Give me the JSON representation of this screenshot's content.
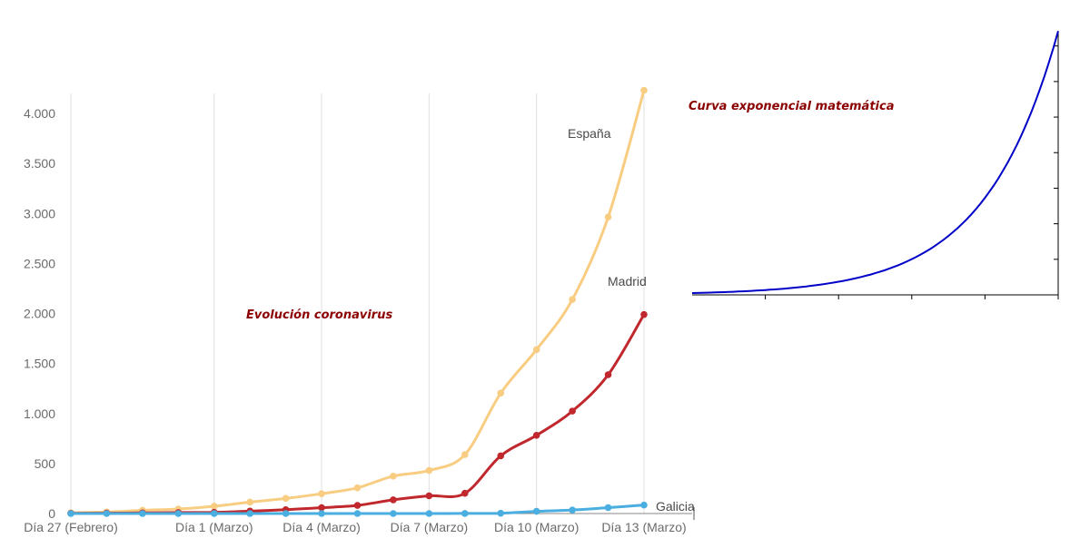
{
  "chart_data": [
    {
      "type": "line",
      "title": "Evolución coronavirus",
      "xlabel": "",
      "ylabel": "",
      "ylim": [
        0,
        4200
      ],
      "grid": "vertical",
      "categories": [
        "Día 27 (Febrero)",
        "",
        "",
        "",
        "Día 1 (Marzo)",
        "",
        "",
        "Día 4 (Marzo)",
        "",
        "",
        "Día 7 (Marzo)",
        "",
        "",
        "Día 10 (Marzo)",
        "",
        "",
        "Día 13 (Marzo)"
      ],
      "x_tick_labels": [
        "Día 27 (Febrero)",
        "Día 1 (Marzo)",
        "Día 4 (Marzo)",
        "Día 7 (Marzo)",
        "Día 10 (Marzo)",
        "Día 13 (Marzo)"
      ],
      "y_tick_labels": [
        "0",
        "500",
        "1.000",
        "1.500",
        "2.000",
        "2.500",
        "3.000",
        "3.500",
        "4.000"
      ],
      "y_ticks": [
        0,
        500,
        1000,
        1500,
        2000,
        2500,
        3000,
        3500,
        4000
      ],
      "series": [
        {
          "name": "España",
          "color": "#f8cd82",
          "values": [
            8,
            15,
            32,
            45,
            73,
            114,
            151,
            198,
            257,
            374,
            430,
            589,
            1204,
            1639,
            2140,
            2965,
            4231
          ]
        },
        {
          "name": "Madrid",
          "color": "#c0282d",
          "values": [
            2,
            4,
            6,
            10,
            12,
            24,
            38,
            58,
            81,
            137,
            177,
            202,
            577,
            782,
            1024,
            1388,
            1990
          ]
        },
        {
          "name": "Galicia",
          "color": "#4aaee0",
          "values": [
            0,
            0,
            0,
            0,
            0,
            0,
            0,
            0,
            0,
            0,
            0,
            1,
            3,
            22,
            35,
            59,
            85
          ]
        }
      ]
    },
    {
      "type": "line",
      "title": "Curva exponencial matemática",
      "xlabel": "",
      "ylabel": "",
      "function": "exponential",
      "xlim": [
        0,
        5
      ],
      "ylim": [
        0,
        7.4
      ],
      "color": "#0000c8",
      "x_tick_labels": [],
      "y_tick_labels": []
    }
  ]
}
